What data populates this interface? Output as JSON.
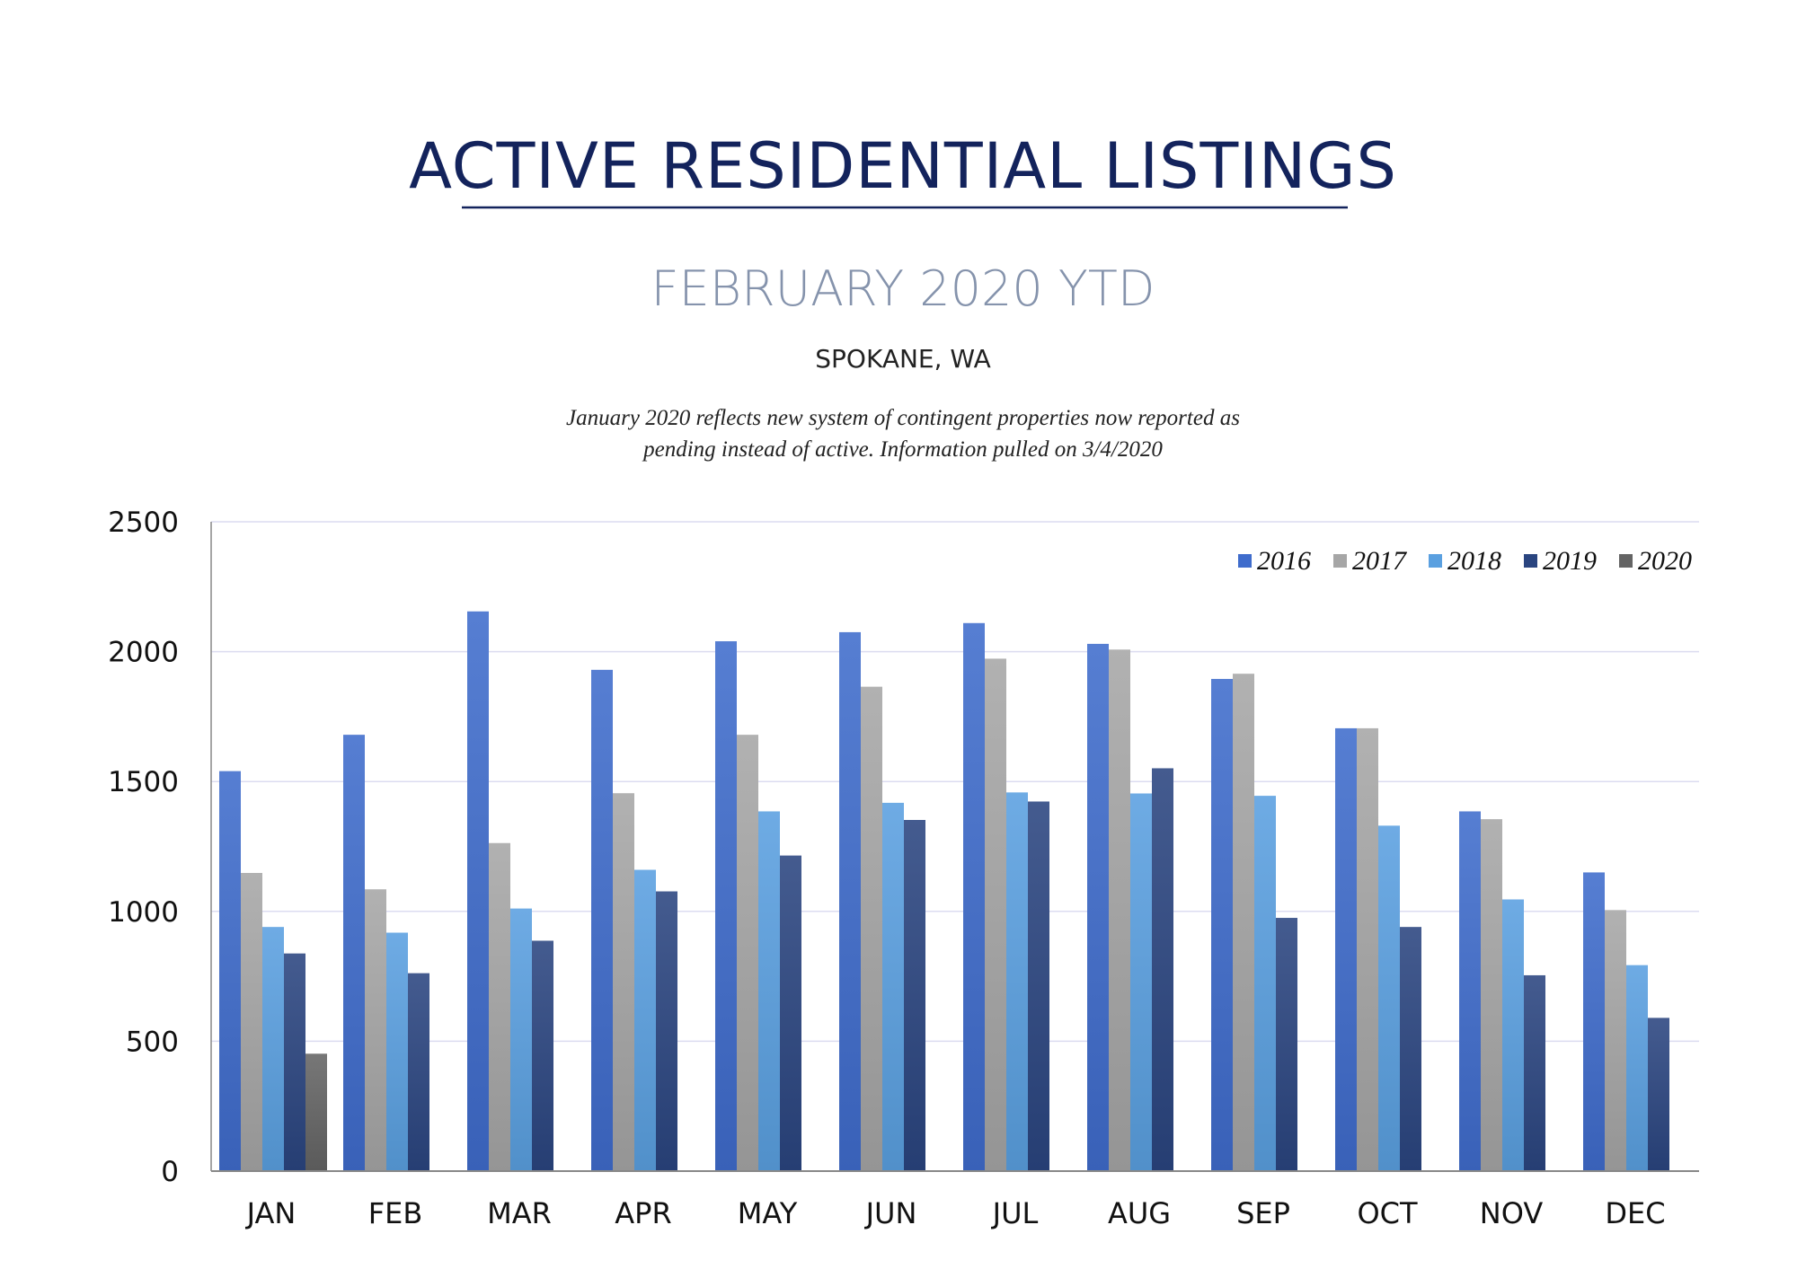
{
  "header": {
    "title": "ACTIVE RESIDENTIAL LISTINGS",
    "subtitle": "FEBRUARY 2020 YTD",
    "location": "SPOKANE, WA",
    "note_line1": "January 2020 reflects new system of contingent properties now reported as",
    "note_line2": "pending instead of active.  Information pulled on 3/4/2020"
  },
  "colors": {
    "title": "#13235c",
    "subtitle": "#8593ac"
  },
  "chart_data": {
    "type": "bar",
    "title": "ACTIVE RESIDENTIAL LISTINGS",
    "subtitle": "FEBRUARY 2020 YTD",
    "categories": [
      "JAN",
      "FEB",
      "MAR",
      "APR",
      "MAY",
      "JUN",
      "JUL",
      "AUG",
      "SEP",
      "OCT",
      "NOV",
      "DEC"
    ],
    "ylim": [
      0,
      2500
    ],
    "yticks": [
      "0",
      "500",
      "1000",
      "1500",
      "2000",
      "2500"
    ],
    "grid": true,
    "legend_position": "top-right",
    "series": [
      {
        "name": "2016",
        "color": "#3f6ccc",
        "values": [
          1540,
          1680,
          2155,
          1930,
          2040,
          2075,
          2110,
          2030,
          1895,
          1705,
          1385,
          1150
        ]
      },
      {
        "name": "2017",
        "color": "#a6a6a6",
        "values": [
          1148,
          1085,
          1263,
          1455,
          1680,
          1865,
          1973,
          2008,
          1915,
          1705,
          1355,
          1005
        ]
      },
      {
        "name": "2018",
        "color": "#5aa0e0",
        "values": [
          940,
          918,
          1011,
          1160,
          1385,
          1418,
          1458,
          1454,
          1445,
          1330,
          1046,
          793
        ]
      },
      {
        "name": "2019",
        "color": "#2a4580",
        "values": [
          838,
          762,
          887,
          1077,
          1215,
          1352,
          1423,
          1551,
          975,
          940,
          754,
          590
        ]
      },
      {
        "name": "2020",
        "color": "#646464",
        "values": [
          452,
          null,
          null,
          null,
          null,
          null,
          null,
          null,
          null,
          null,
          null,
          null
        ]
      }
    ]
  }
}
